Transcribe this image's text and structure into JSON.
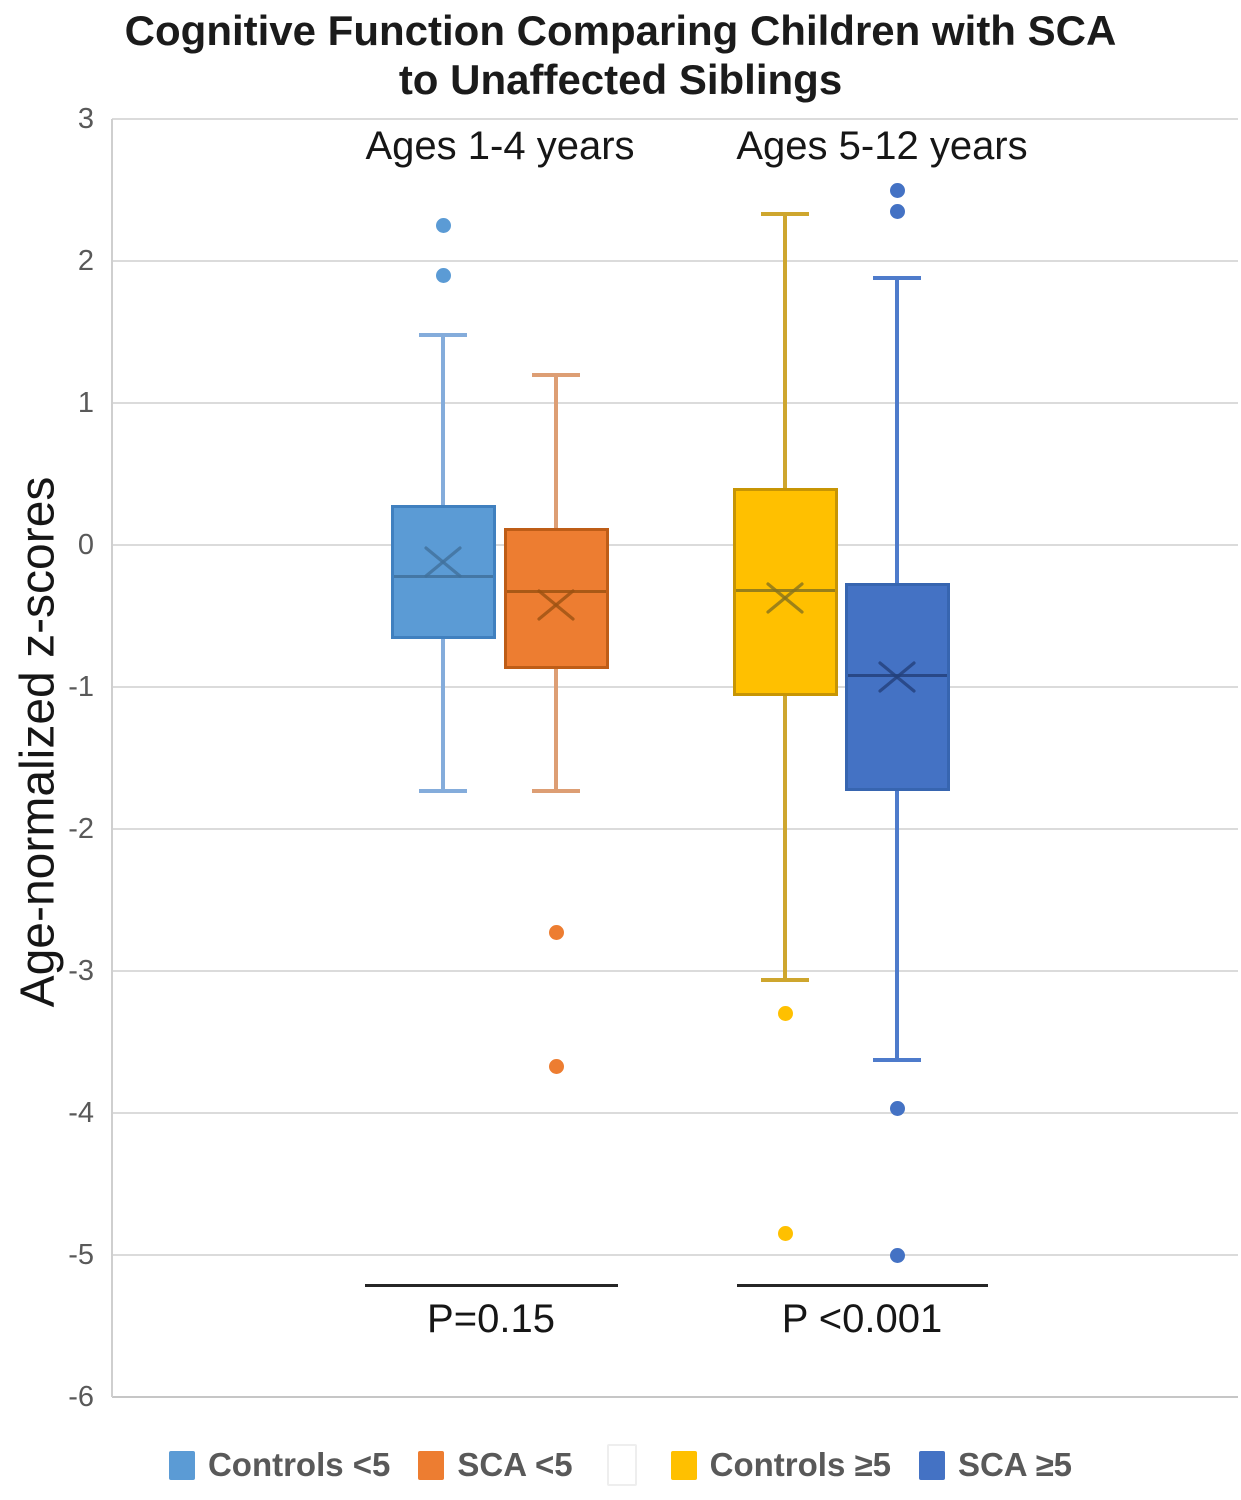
{
  "title": {
    "line1": "Cognitive Function Comparing Children with SCA",
    "line2": "to Unaffected Siblings"
  },
  "y_axis": {
    "label": "Age-normalized z-scores",
    "min": -6,
    "max": 3,
    "tick_step": 1,
    "ticks": [
      3,
      2,
      1,
      0,
      -1,
      -2,
      -3,
      -4,
      -5,
      -6
    ]
  },
  "group_labels": [
    {
      "text": "Ages 1-4 years"
    },
    {
      "text": "Ages 5-12 years"
    }
  ],
  "annotations": [
    {
      "text": "P=0.15"
    },
    {
      "text": "P <0.001"
    }
  ],
  "legend": {
    "items": [
      {
        "label": "Controls <5",
        "color": "#5B9BD5"
      },
      {
        "label": "SCA <5",
        "color": "#ED7D31"
      },
      {
        "label": "Controls ≥5",
        "color": "#FFC000"
      },
      {
        "label": "SCA ≥5",
        "color": "#4472C4"
      }
    ]
  },
  "chart_data": {
    "type": "boxplot",
    "title": "Cognitive Function Comparing Children with SCA to Unaffected Siblings",
    "ylabel": "Age-normalized z-scores",
    "ylim": [
      -6,
      3
    ],
    "grid": true,
    "legend_position": "bottom",
    "groups": [
      "Ages 1-4 years",
      "Ages 5-12 years"
    ],
    "series": [
      {
        "name": "Controls <5",
        "group": "Ages 1-4 years",
        "whisker_low": -1.73,
        "q1": -0.66,
        "median": -0.22,
        "mean": -0.12,
        "q3": 0.28,
        "whisker_high": 1.48,
        "outliers": [
          1.9,
          2.25
        ],
        "fill": "#5B9BD5",
        "border": "#4080BF",
        "whisker": "#84ACDB",
        "line": "#41719C"
      },
      {
        "name": "SCA <5",
        "group": "Ages 1-4 years",
        "whisker_low": -1.73,
        "q1": -0.87,
        "median": -0.33,
        "mean": -0.42,
        "q3": 0.12,
        "whisker_high": 1.2,
        "outliers": [
          -2.73,
          -3.67
        ],
        "fill": "#ED7D31",
        "border": "#BE5D17",
        "whisker": "#DD9E74",
        "line": "#9C5212"
      },
      {
        "name": "Controls ≥5",
        "group": "Ages 5-12 years",
        "whisker_low": -3.06,
        "q1": -1.06,
        "median": -0.32,
        "mean": -0.37,
        "q3": 0.4,
        "whisker_high": 2.33,
        "outliers": [
          -3.3,
          -4.85
        ],
        "fill": "#FFC000",
        "border": "#C79504",
        "whisker": "#CEA62E",
        "line": "#86731F"
      },
      {
        "name": "SCA ≥5",
        "group": "Ages 5-12 years",
        "whisker_low": -3.63,
        "q1": -1.73,
        "median": -0.92,
        "mean": -0.93,
        "q3": -0.27,
        "whisker_high": 1.88,
        "outliers": [
          2.5,
          2.35,
          -3.97,
          -5.0
        ],
        "fill": "#4472C4",
        "border": "#3765B0",
        "whisker": "#4E7BCB",
        "line": "#24417C"
      }
    ],
    "pvalues": [
      {
        "group": "Ages 1-4 years",
        "label": "P=0.15"
      },
      {
        "group": "Ages 5-12 years",
        "label": "P <0.001"
      }
    ]
  }
}
